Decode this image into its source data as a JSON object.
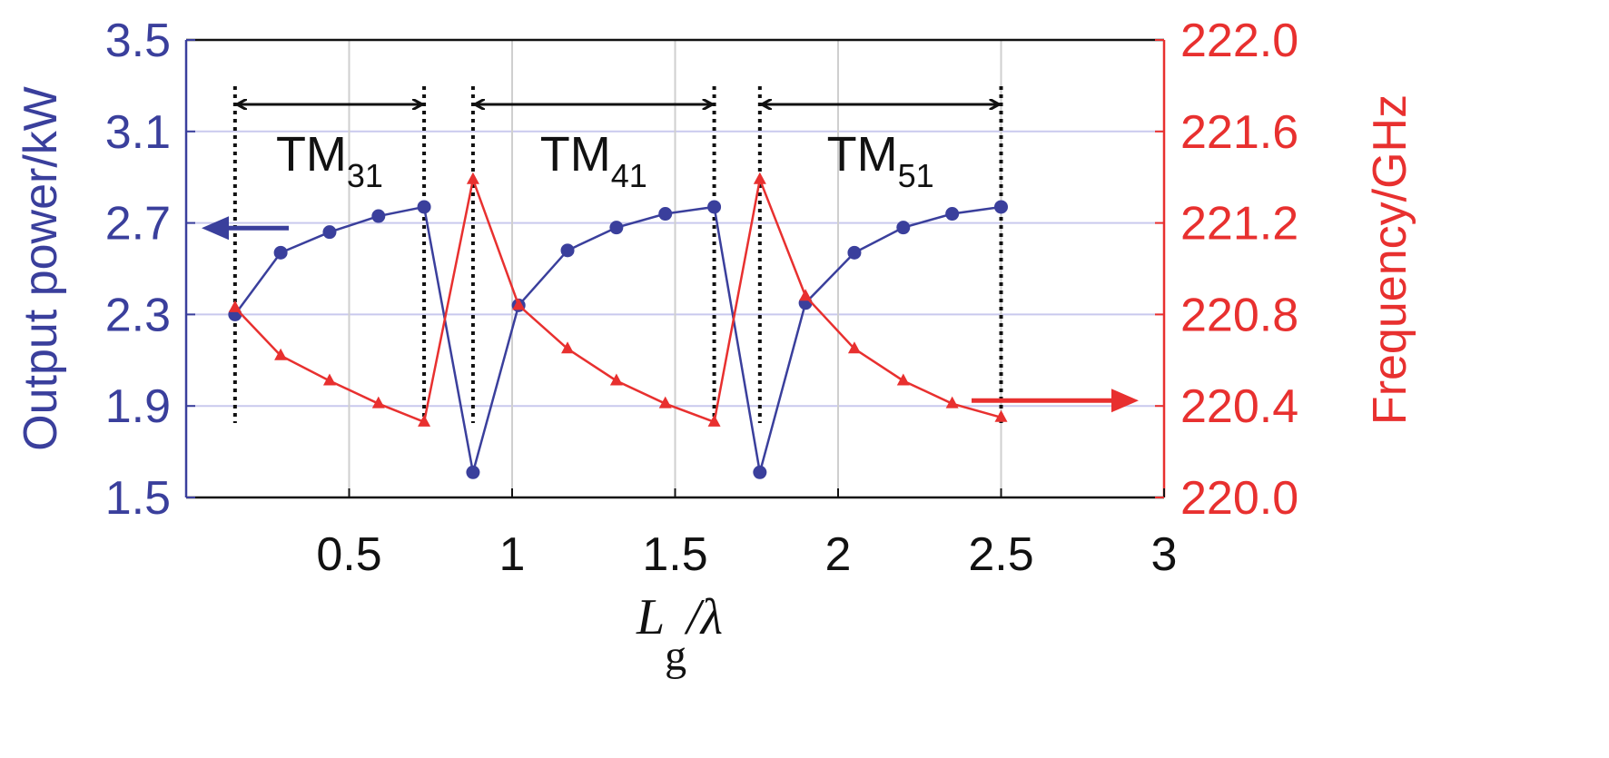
{
  "chart_data": {
    "type": "line",
    "title": "",
    "xlabel": "L g/λ",
    "xlabel_parts": {
      "main": "L",
      "sub": "g",
      "tail": "/λ"
    },
    "ylabel_left": "Output power/kW",
    "ylabel_right": "Frequency/GHz",
    "xlim": [
      0,
      3
    ],
    "ylim_left": [
      1.5,
      3.5
    ],
    "ylim_right": [
      220.0,
      222.0
    ],
    "x_ticks": [
      0.5,
      1,
      1.5,
      2,
      2.5,
      3
    ],
    "x_tick_labels": [
      "0.5",
      "1",
      "1.5",
      "2",
      "2.5",
      "3"
    ],
    "y_left_ticks": [
      1.5,
      1.9,
      2.3,
      2.7,
      3.1,
      3.5
    ],
    "y_left_tick_labels": [
      "1.5",
      "1.9",
      "2.3",
      "2.7",
      "3.1",
      "3.5"
    ],
    "y_right_ticks": [
      220.0,
      220.4,
      220.8,
      221.2,
      221.6,
      222.0
    ],
    "y_right_tick_labels": [
      "220.0",
      "220.4",
      "220.8",
      "221.2",
      "221.6",
      "222.0"
    ],
    "grid": true,
    "series": [
      {
        "axis": "left",
        "color": "#3a3f9c",
        "marker": "circle",
        "x": [
          0.15,
          0.29,
          0.44,
          0.59,
          0.73,
          0.88,
          1.02,
          1.17,
          1.32,
          1.47,
          1.62,
          1.76,
          1.9,
          2.05,
          2.2,
          2.35,
          2.5
        ],
        "values": [
          2.3,
          2.57,
          2.66,
          2.73,
          2.77,
          1.61,
          2.34,
          2.58,
          2.68,
          2.74,
          2.77,
          1.61,
          2.35,
          2.57,
          2.68,
          2.74,
          2.77
        ]
      },
      {
        "axis": "right",
        "color": "#e8302f",
        "marker": "triangle",
        "x": [
          0.15,
          0.29,
          0.44,
          0.59,
          0.73,
          0.88,
          1.02,
          1.17,
          1.32,
          1.47,
          1.62,
          1.76,
          1.9,
          2.05,
          2.2,
          2.35,
          2.5
        ],
        "values": [
          220.83,
          220.62,
          220.51,
          220.41,
          220.33,
          221.39,
          220.84,
          220.65,
          220.51,
          220.41,
          220.33,
          221.39,
          220.88,
          220.65,
          220.51,
          220.41,
          220.35
        ]
      }
    ],
    "mode_regions": [
      {
        "mode": "TM",
        "sub": "31",
        "x_start": 0.15,
        "x_end": 0.73
      },
      {
        "mode": "TM",
        "sub": "41",
        "x_start": 0.88,
        "x_end": 1.62
      },
      {
        "mode": "TM",
        "sub": "51",
        "x_start": 1.76,
        "x_end": 2.5
      }
    ],
    "axis_arrows": [
      {
        "direction": "left",
        "color": "#3a3f9c",
        "y_value_left": 2.65
      },
      {
        "direction": "right",
        "color": "#e8302f",
        "y_value_left": 1.9
      }
    ]
  }
}
